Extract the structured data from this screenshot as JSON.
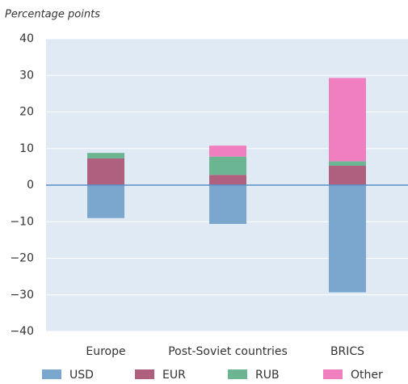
{
  "chart_data": {
    "type": "stacked_bar",
    "y_axis_label": "Percentage points",
    "categories": [
      "Europe",
      "Post-Soviet countries",
      "BRICS"
    ],
    "series": [
      {
        "name": "USD",
        "color": "#7ba7cf",
        "values": [
          -9,
          -10.6,
          -29.3
        ]
      },
      {
        "name": "EUR",
        "color": "#b0607f",
        "values": [
          7.3,
          2.8,
          5.3
        ]
      },
      {
        "name": "RUB",
        "color": "#6bb593",
        "values": [
          1.5,
          5,
          1.2
        ]
      },
      {
        "name": "Other",
        "color": "#f07fbf",
        "values": [
          0,
          3,
          22.8
        ]
      }
    ],
    "ylim": [
      -40,
      40
    ],
    "yticks": [
      {
        "value": -40,
        "label": "−40"
      },
      {
        "value": -30,
        "label": "−30"
      },
      {
        "value": -20,
        "label": "−20"
      },
      {
        "value": -10,
        "label": "−10"
      },
      0,
      10,
      20,
      30,
      40
    ],
    "grid": true
  }
}
